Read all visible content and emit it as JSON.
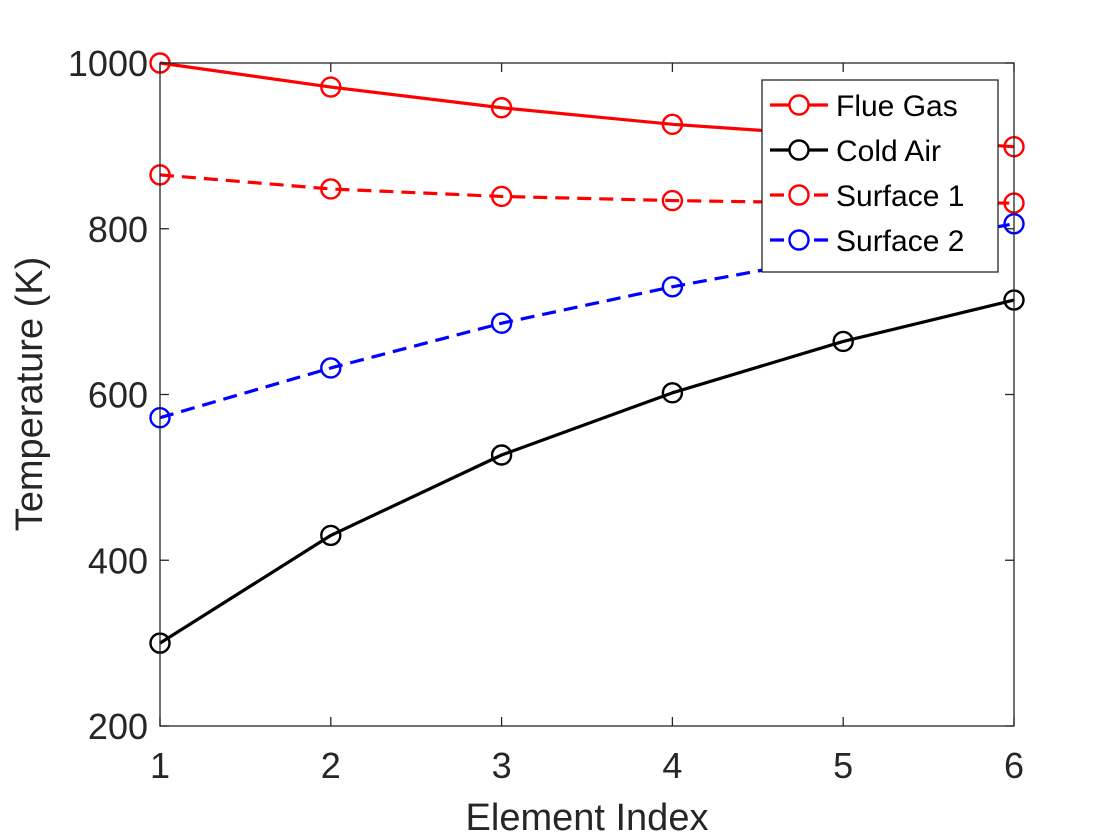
{
  "chart_data": {
    "type": "line",
    "xlabel": "Element Index",
    "ylabel": "Temperature (K)",
    "xlim": [
      1,
      6
    ],
    "ylim": [
      200,
      1000
    ],
    "xticks": [
      1,
      2,
      3,
      4,
      5,
      6
    ],
    "yticks": [
      200,
      400,
      600,
      800,
      1000
    ],
    "xtick_labels": [
      "1",
      "2",
      "3",
      "4",
      "5",
      "6"
    ],
    "ytick_labels": [
      "200",
      "400",
      "600",
      "800",
      "1000"
    ],
    "grid": false,
    "legend_position": "top-right",
    "x": [
      1,
      2,
      3,
      4,
      5,
      6
    ],
    "series": [
      {
        "name": "Flue Gas",
        "values": [
          1000,
          971,
          946,
          926,
          912,
          899
        ],
        "color": "#ff0000",
        "line_style": "solid",
        "marker": "circle"
      },
      {
        "name": "Cold Air",
        "values": [
          300,
          430,
          527,
          602,
          664,
          714
        ],
        "color": "#000000",
        "line_style": "solid",
        "marker": "circle"
      },
      {
        "name": "Surface 1",
        "values": [
          865,
          848,
          839,
          834,
          831,
          831
        ],
        "color": "#ff0000",
        "line_style": "dashed",
        "marker": "circle"
      },
      {
        "name": "Surface 2",
        "values": [
          572,
          632,
          686,
          730,
          768,
          806
        ],
        "color": "#0000ff",
        "line_style": "dashed",
        "marker": "circle"
      }
    ]
  }
}
